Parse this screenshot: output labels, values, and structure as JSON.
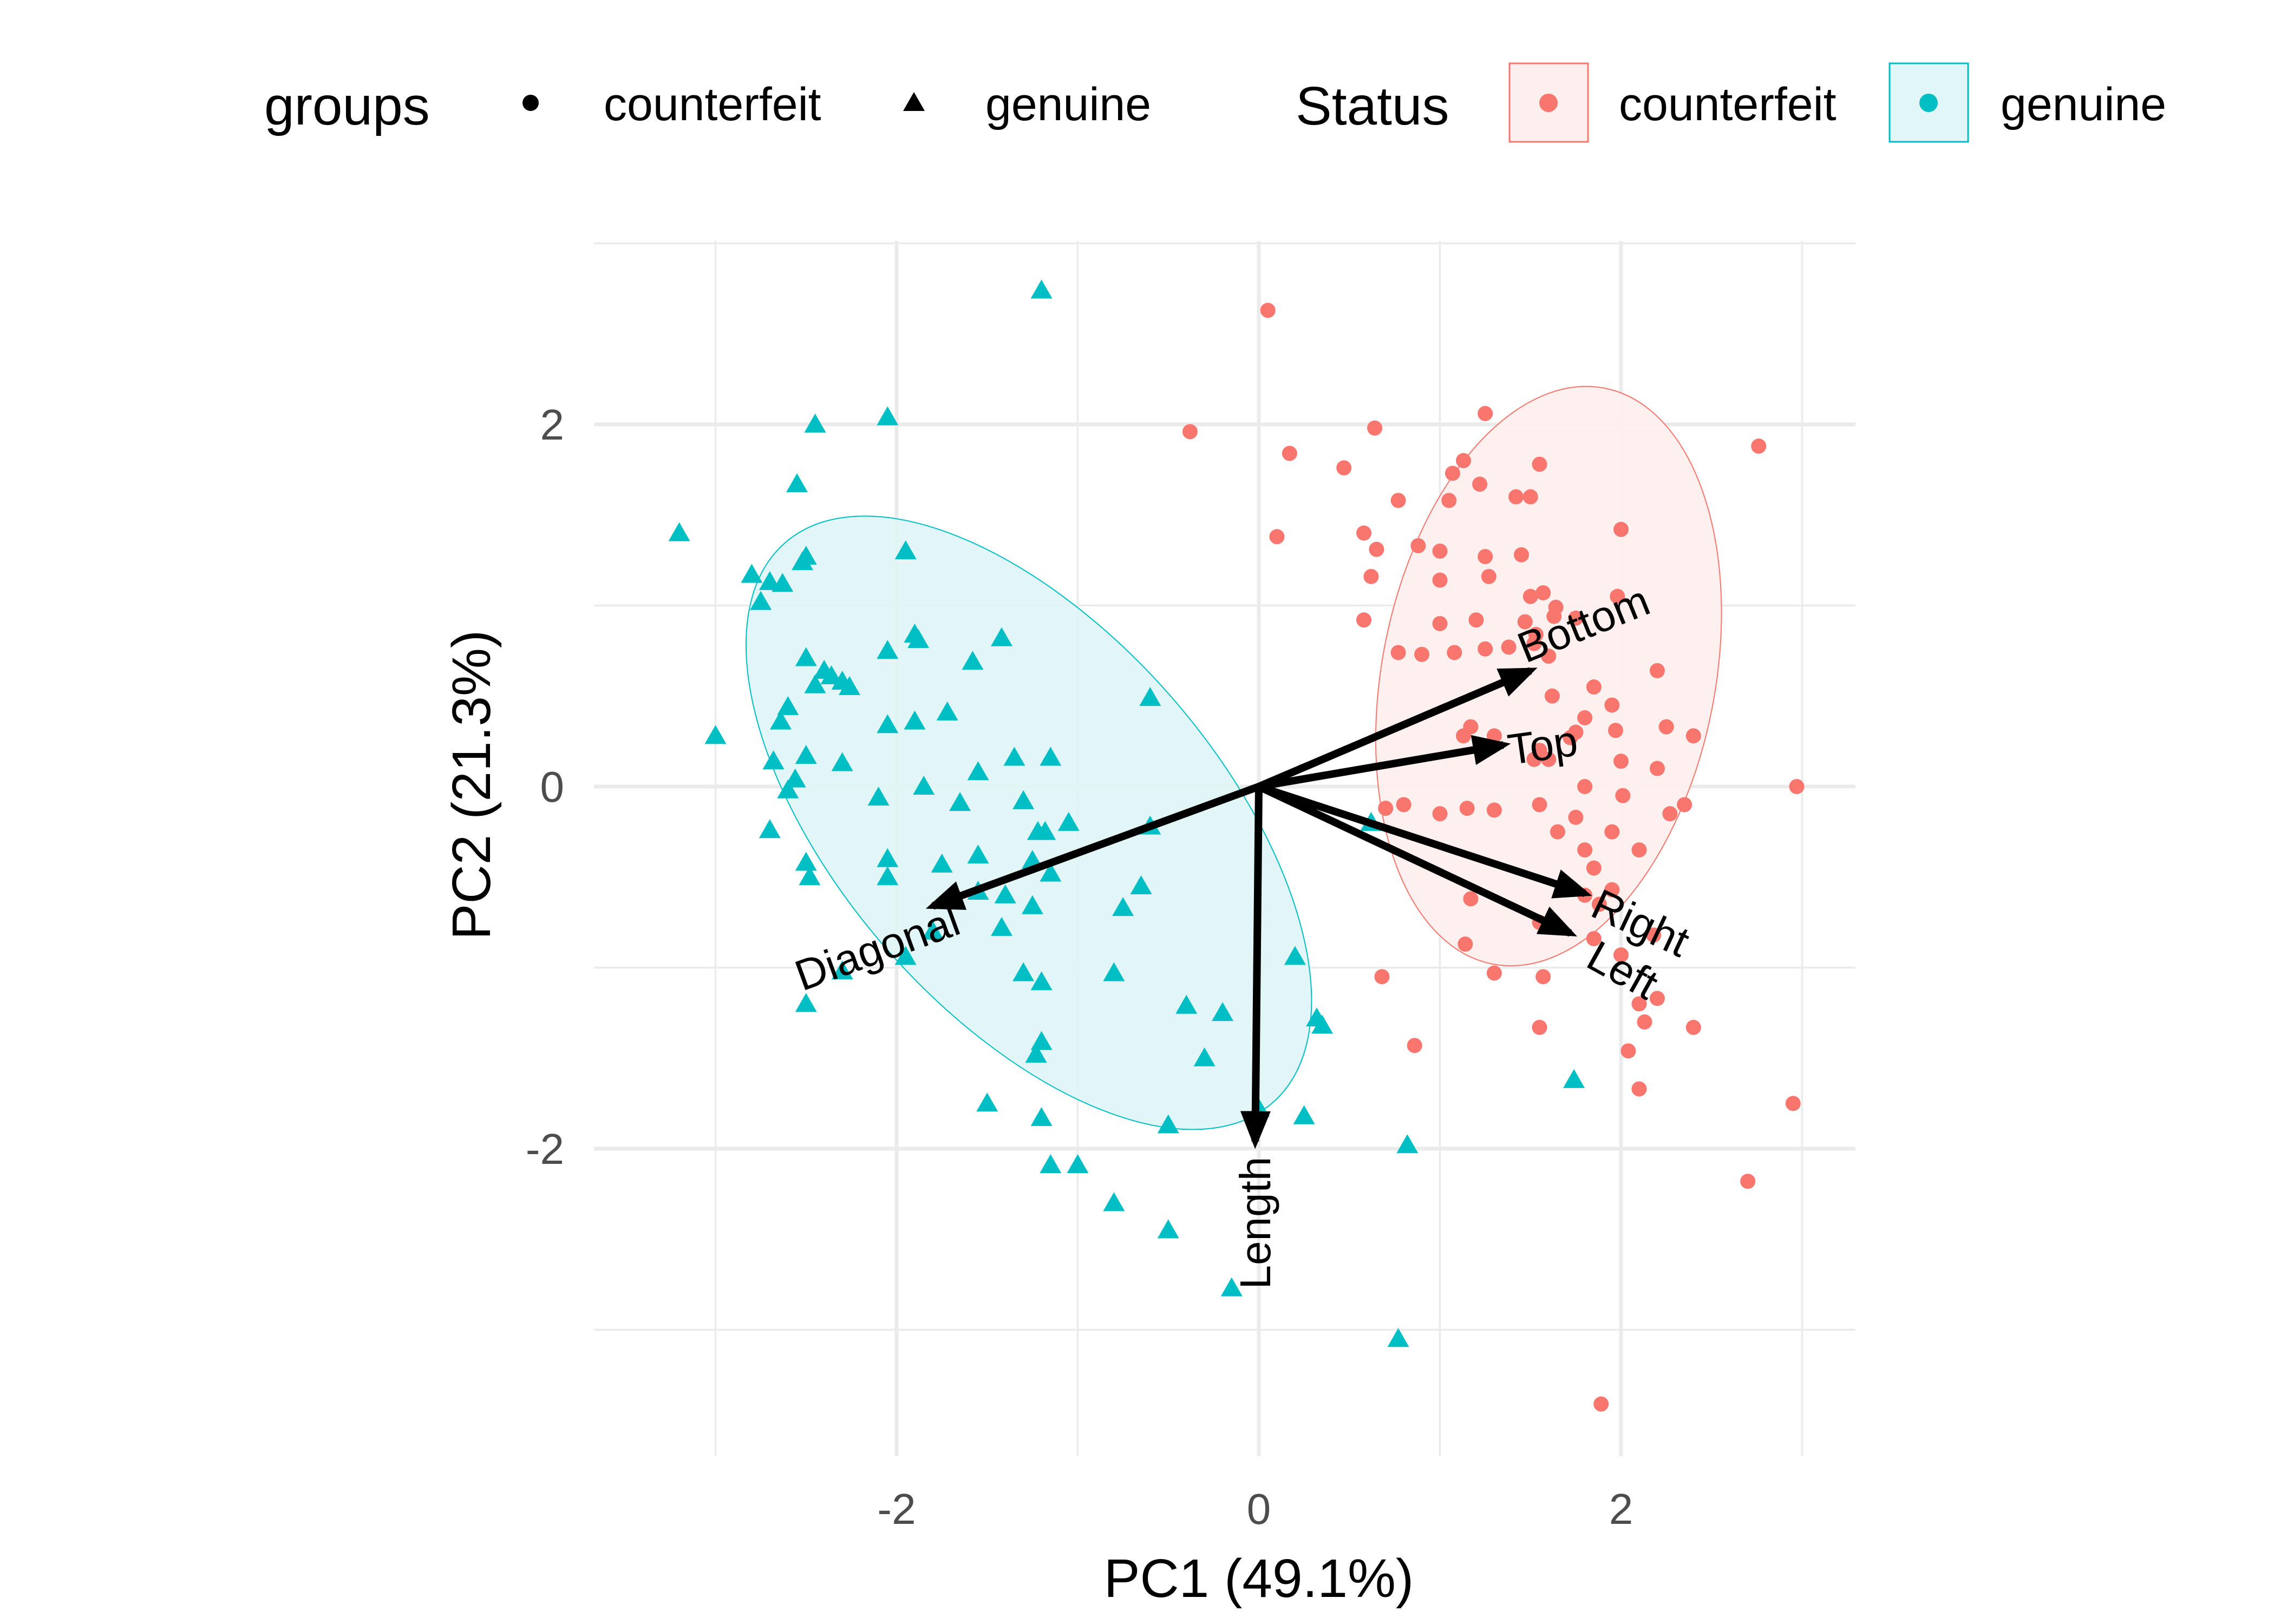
{
  "chart_data": {
    "type": "scatter",
    "subtype": "pca-biplot",
    "title": "",
    "xlabel": "PC1 (49.1%)",
    "ylabel": "PC2 (21.3%)",
    "xlim": [
      -3.6,
      3.3
    ],
    "ylim": [
      -3.7,
      3.0
    ],
    "x_ticks": [
      -2,
      0,
      2
    ],
    "y_ticks": [
      -2,
      0,
      2
    ],
    "x_tick_labels": [
      "-2",
      "0",
      "2"
    ],
    "y_tick_labels": [
      "-2",
      "0",
      "2"
    ],
    "grid": true,
    "legend_position": "top",
    "legends": [
      {
        "title": "groups",
        "entries": [
          {
            "label": "counterfeit",
            "shape": "circle",
            "color": "#000000"
          },
          {
            "label": "genuine",
            "shape": "triangle",
            "color": "#000000"
          }
        ]
      },
      {
        "title": "Status",
        "entries": [
          {
            "label": "counterfeit",
            "shape": "circle",
            "color": "#F8766D",
            "fill": "#FDEFEE"
          },
          {
            "label": "genuine",
            "shape": "circle",
            "color": "#00BFC4",
            "fill": "#E0F6F7"
          }
        ]
      }
    ],
    "series": [
      {
        "name": "genuine",
        "shape": "triangle",
        "color": "#00BFC4",
        "points": [
          [
            -1.2,
            2.74
          ],
          [
            -3.2,
            1.4
          ],
          [
            -2.45,
            2.0
          ],
          [
            -2.05,
            2.04
          ],
          [
            -2.55,
            1.67
          ],
          [
            -2.5,
            1.27
          ],
          [
            -2.52,
            1.24
          ],
          [
            -2.8,
            1.17
          ],
          [
            -2.7,
            1.13
          ],
          [
            -2.75,
            1.02
          ],
          [
            -2.63,
            1.12
          ],
          [
            -1.95,
            1.3
          ],
          [
            -1.42,
            0.82
          ],
          [
            -1.9,
            0.84
          ],
          [
            -1.88,
            0.81
          ],
          [
            -2.05,
            0.75
          ],
          [
            -1.58,
            0.69
          ],
          [
            -2.5,
            0.71
          ],
          [
            -2.4,
            0.64
          ],
          [
            -2.36,
            0.61
          ],
          [
            -2.45,
            0.56
          ],
          [
            -2.3,
            0.58
          ],
          [
            -2.26,
            0.55
          ],
          [
            -2.6,
            0.44
          ],
          [
            -2.64,
            0.36
          ],
          [
            -3.0,
            0.28
          ],
          [
            -2.05,
            0.34
          ],
          [
            -1.9,
            0.36
          ],
          [
            -1.72,
            0.41
          ],
          [
            -2.5,
            0.17
          ],
          [
            -2.3,
            0.13
          ],
          [
            -2.68,
            0.14
          ],
          [
            -2.56,
            0.04
          ],
          [
            -2.6,
            -0.02
          ],
          [
            -1.55,
            0.08
          ],
          [
            -1.35,
            0.16
          ],
          [
            -1.15,
            0.16
          ],
          [
            -1.65,
            -0.09
          ],
          [
            -2.1,
            -0.06
          ],
          [
            -1.85,
            0.0
          ],
          [
            -1.3,
            -0.08
          ],
          [
            -1.05,
            -0.2
          ],
          [
            -0.6,
            0.49
          ],
          [
            -0.6,
            -0.22
          ],
          [
            -2.7,
            -0.24
          ],
          [
            -2.5,
            -0.42
          ],
          [
            -2.48,
            -0.5
          ],
          [
            -2.05,
            -0.4
          ],
          [
            -2.05,
            -0.5
          ],
          [
            -1.75,
            -0.43
          ],
          [
            -1.55,
            -0.38
          ],
          [
            -1.22,
            -0.25
          ],
          [
            -1.18,
            -0.25
          ],
          [
            -1.25,
            -0.41
          ],
          [
            -1.15,
            -0.48
          ],
          [
            -1.55,
            -0.58
          ],
          [
            -1.4,
            -0.6
          ],
          [
            -1.25,
            -0.66
          ],
          [
            -1.42,
            -0.78
          ],
          [
            -0.75,
            -0.67
          ],
          [
            -0.65,
            -0.55
          ],
          [
            -1.8,
            -0.8
          ],
          [
            -1.95,
            -0.94
          ],
          [
            -2.3,
            -1.02
          ],
          [
            -1.3,
            -1.03
          ],
          [
            -1.2,
            -1.08
          ],
          [
            -0.8,
            -1.03
          ],
          [
            -1.2,
            -1.41
          ],
          [
            -1.23,
            -1.48
          ],
          [
            -0.4,
            -1.21
          ],
          [
            -0.2,
            -1.25
          ],
          [
            -0.3,
            -1.5
          ],
          [
            -1.5,
            -1.75
          ],
          [
            -1.2,
            -1.83
          ],
          [
            -0.5,
            -1.87
          ],
          [
            -1.15,
            -2.09
          ],
          [
            -1.0,
            -2.09
          ],
          [
            -0.8,
            -2.3
          ],
          [
            -0.5,
            -2.45
          ],
          [
            -0.15,
            -2.77
          ],
          [
            -2.5,
            -1.2
          ],
          [
            0.2,
            -0.94
          ],
          [
            0.32,
            -1.28
          ],
          [
            0.35,
            -1.32
          ],
          [
            0.25,
            -1.82
          ],
          [
            0.0,
            -1.78
          ],
          [
            0.82,
            -1.98
          ],
          [
            0.77,
            -3.05
          ],
          [
            1.74,
            -1.62
          ],
          [
            0.62,
            -0.2
          ]
        ]
      },
      {
        "name": "counterfeit",
        "shape": "circle",
        "color": "#F8766D",
        "points": [
          [
            0.05,
            2.63
          ],
          [
            1.25,
            2.06
          ],
          [
            0.64,
            1.98
          ],
          [
            -0.38,
            1.96
          ],
          [
            0.17,
            1.84
          ],
          [
            0.47,
            1.76
          ],
          [
            1.13,
            1.8
          ],
          [
            1.55,
            1.78
          ],
          [
            2.76,
            1.88
          ],
          [
            1.07,
            1.73
          ],
          [
            1.22,
            1.67
          ],
          [
            0.77,
            1.58
          ],
          [
            1.05,
            1.58
          ],
          [
            1.42,
            1.6
          ],
          [
            1.5,
            1.6
          ],
          [
            0.1,
            1.38
          ],
          [
            0.58,
            1.4
          ],
          [
            0.88,
            1.33
          ],
          [
            1.0,
            1.3
          ],
          [
            1.25,
            1.27
          ],
          [
            1.45,
            1.28
          ],
          [
            2.0,
            1.42
          ],
          [
            0.65,
            1.31
          ],
          [
            0.62,
            1.16
          ],
          [
            1.0,
            1.14
          ],
          [
            1.27,
            1.16
          ],
          [
            1.5,
            1.05
          ],
          [
            1.57,
            1.07
          ],
          [
            1.64,
            0.99
          ],
          [
            1.98,
            1.05
          ],
          [
            0.58,
            0.92
          ],
          [
            1.0,
            0.9
          ],
          [
            1.2,
            0.92
          ],
          [
            1.47,
            0.91
          ],
          [
            1.53,
            0.84
          ],
          [
            1.63,
            0.94
          ],
          [
            1.75,
            0.93
          ],
          [
            0.77,
            0.74
          ],
          [
            0.9,
            0.73
          ],
          [
            1.08,
            0.74
          ],
          [
            1.25,
            0.76
          ],
          [
            1.38,
            0.77
          ],
          [
            1.52,
            0.79
          ],
          [
            1.6,
            0.72
          ],
          [
            1.62,
            0.5
          ],
          [
            1.85,
            0.55
          ],
          [
            2.2,
            0.64
          ],
          [
            1.8,
            0.38
          ],
          [
            1.72,
            0.27
          ],
          [
            1.95,
            0.45
          ],
          [
            1.97,
            0.31
          ],
          [
            2.25,
            0.33
          ],
          [
            2.4,
            0.28
          ],
          [
            1.17,
            0.33
          ],
          [
            1.13,
            0.28
          ],
          [
            1.3,
            0.28
          ],
          [
            1.55,
            0.2
          ],
          [
            1.6,
            0.15
          ],
          [
            1.75,
            0.3
          ],
          [
            1.52,
            0.15
          ],
          [
            1.8,
            0.0
          ],
          [
            2.0,
            0.14
          ],
          [
            2.2,
            0.1
          ],
          [
            2.01,
            -0.05
          ],
          [
            2.27,
            -0.15
          ],
          [
            0.8,
            -0.1
          ],
          [
            1.0,
            -0.15
          ],
          [
            1.15,
            -0.12
          ],
          [
            1.3,
            -0.13
          ],
          [
            1.55,
            -0.1
          ],
          [
            1.75,
            -0.17
          ],
          [
            1.65,
            -0.25
          ],
          [
            1.95,
            -0.25
          ],
          [
            2.1,
            -0.35
          ],
          [
            1.8,
            -0.35
          ],
          [
            2.35,
            -0.1
          ],
          [
            1.85,
            -0.45
          ],
          [
            1.95,
            -0.57
          ],
          [
            1.88,
            -0.65
          ],
          [
            1.8,
            -0.6
          ],
          [
            1.55,
            -0.75
          ],
          [
            1.17,
            -0.62
          ],
          [
            1.14,
            -0.87
          ],
          [
            1.85,
            -0.84
          ],
          [
            2.18,
            -0.82
          ],
          [
            2.0,
            -0.93
          ],
          [
            1.3,
            -1.03
          ],
          [
            0.68,
            -1.05
          ],
          [
            1.57,
            -1.05
          ],
          [
            2.1,
            -1.2
          ],
          [
            2.2,
            -1.17
          ],
          [
            1.55,
            -1.33
          ],
          [
            2.13,
            -1.3
          ],
          [
            2.4,
            -1.33
          ],
          [
            0.86,
            -1.43
          ],
          [
            2.04,
            -1.46
          ],
          [
            2.1,
            -1.67
          ],
          [
            2.97,
            0.0
          ],
          [
            2.95,
            -1.75
          ],
          [
            2.7,
            -2.18
          ],
          [
            1.89,
            -3.41
          ],
          [
            0.7,
            -0.12
          ]
        ]
      }
    ],
    "ellipses": [
      {
        "group": "genuine",
        "color": "#00BFC4",
        "fill": "#E0F6F7",
        "center": [
          -1.27,
          -0.2
        ],
        "semi_major": 2.05,
        "semi_minor": 1.05,
        "angle_deg": -49
      },
      {
        "group": "counterfeit",
        "color": "#F8766D",
        "fill": "#FDEFEE",
        "center": [
          1.6,
          0.61
        ],
        "semi_major": 1.62,
        "semi_minor": 0.92,
        "angle_deg": 79
      }
    ],
    "loadings": [
      {
        "name": "Bottom",
        "x": 1.5,
        "y": 0.64
      },
      {
        "name": "Top",
        "x": 1.35,
        "y": 0.23
      },
      {
        "name": "Right",
        "x": 1.8,
        "y": -0.59
      },
      {
        "name": "Left",
        "x": 1.72,
        "y": -0.81
      },
      {
        "name": "Length",
        "x": -0.02,
        "y": -1.96
      },
      {
        "name": "Diagonal",
        "x": -1.8,
        "y": -0.66
      }
    ]
  }
}
